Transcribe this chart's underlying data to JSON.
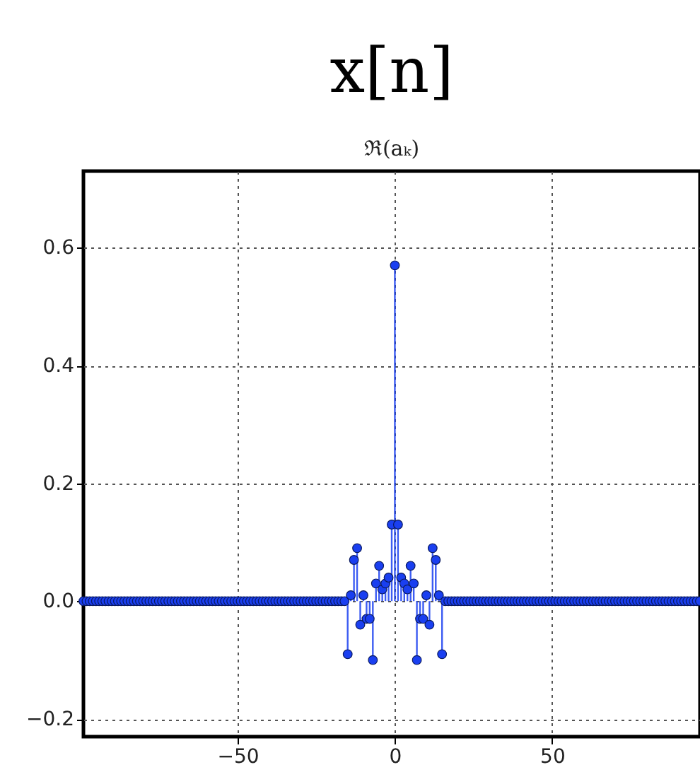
{
  "chart_data": {
    "type": "lollipop",
    "title": "x[n]",
    "subtitle": "ℜ(aₖ)",
    "x": [
      -99,
      -98,
      -97,
      -96,
      -95,
      -94,
      -93,
      -92,
      -91,
      -90,
      -89,
      -88,
      -87,
      -86,
      -85,
      -84,
      -83,
      -82,
      -81,
      -80,
      -79,
      -78,
      -77,
      -76,
      -75,
      -74,
      -73,
      -72,
      -71,
      -70,
      -69,
      -68,
      -67,
      -66,
      -65,
      -64,
      -63,
      -62,
      -61,
      -60,
      -59,
      -58,
      -57,
      -56,
      -55,
      -54,
      -53,
      -52,
      -51,
      -50,
      -49,
      -48,
      -47,
      -46,
      -45,
      -44,
      -43,
      -42,
      -41,
      -40,
      -39,
      -38,
      -37,
      -36,
      -35,
      -34,
      -33,
      -32,
      -31,
      -30,
      -29,
      -28,
      -27,
      -26,
      -25,
      -24,
      -23,
      -22,
      -21,
      -20,
      -19,
      -18,
      -17,
      -16,
      -15,
      -14,
      -13,
      -12,
      -11,
      -10,
      -9,
      -8,
      -7,
      -6,
      -5,
      -4,
      -3,
      -2,
      -1,
      0,
      1,
      2,
      3,
      4,
      5,
      6,
      7,
      8,
      9,
      10,
      11,
      12,
      13,
      14,
      15,
      16,
      17,
      18,
      19,
      20,
      21,
      22,
      23,
      24,
      25,
      26,
      27,
      28,
      29,
      30,
      31,
      32,
      33,
      34,
      35,
      36,
      37,
      38,
      39,
      40,
      41,
      42,
      43,
      44,
      45,
      46,
      47,
      48,
      49,
      50,
      51,
      52,
      53,
      54,
      55,
      56,
      57,
      58,
      59,
      60,
      61,
      62,
      63,
      64,
      65,
      66,
      67,
      68,
      69,
      70,
      71,
      72,
      73,
      74,
      75,
      76,
      77,
      78,
      79,
      80,
      81,
      82,
      83,
      84,
      85,
      86,
      87,
      88,
      89,
      90,
      91,
      92,
      93,
      94,
      95,
      96,
      97
    ],
    "values": [
      0,
      0,
      0,
      0,
      0,
      0,
      0,
      0,
      0,
      0,
      0,
      0,
      0,
      0,
      0,
      0,
      0,
      0,
      0,
      0,
      0,
      0,
      0,
      0,
      0,
      0,
      0,
      0,
      0,
      0,
      0,
      0,
      0,
      0,
      0,
      0,
      0,
      0,
      0,
      0,
      0,
      0,
      0,
      0,
      0,
      0,
      0,
      0,
      0,
      0,
      0,
      0,
      0,
      0,
      0,
      0,
      0,
      0,
      0,
      0,
      0,
      0,
      0,
      0,
      0,
      0,
      0,
      0,
      0,
      0,
      0,
      0,
      0,
      0,
      0,
      0,
      0,
      0,
      0,
      0,
      0,
      0,
      0,
      0,
      -0.09,
      0.01,
      0.07,
      0.09,
      -0.04,
      0.01,
      -0.03,
      -0.03,
      -0.1,
      0.03,
      0.06,
      0.02,
      0.03,
      0.04,
      0.13,
      0.57,
      0.13,
      0.04,
      0.03,
      0.02,
      0.06,
      0.03,
      -0.1,
      -0.03,
      -0.03,
      0.01,
      -0.04,
      0.09,
      0.07,
      0.01,
      -0.09,
      0,
      0,
      0,
      0,
      0,
      0,
      0,
      0,
      0,
      0,
      0,
      0,
      0,
      0,
      0,
      0,
      0,
      0,
      0,
      0,
      0,
      0,
      0,
      0,
      0,
      0,
      0,
      0,
      0,
      0,
      0,
      0,
      0,
      0,
      0,
      0,
      0,
      0,
      0,
      0,
      0,
      0,
      0,
      0,
      0,
      0,
      0,
      0,
      0,
      0,
      0,
      0,
      0,
      0,
      0,
      0,
      0,
      0,
      0,
      0,
      0,
      0,
      0,
      0,
      0,
      0,
      0,
      0,
      0,
      0,
      0,
      0,
      0,
      0,
      0,
      0,
      0,
      0,
      0,
      0,
      0,
      0
    ],
    "color": "#1a3ff0",
    "xlim": [
      -99,
      97
    ],
    "xticks": [
      -50,
      0,
      50
    ],
    "ylim": [
      -0.23,
      0.73
    ],
    "yticks": [
      -0.2,
      {
        "value": 0,
        "label": "0.0"
      },
      0.2,
      0.4,
      0.6
    ],
    "grid": true,
    "marker": "circle",
    "line_style": "solid"
  }
}
